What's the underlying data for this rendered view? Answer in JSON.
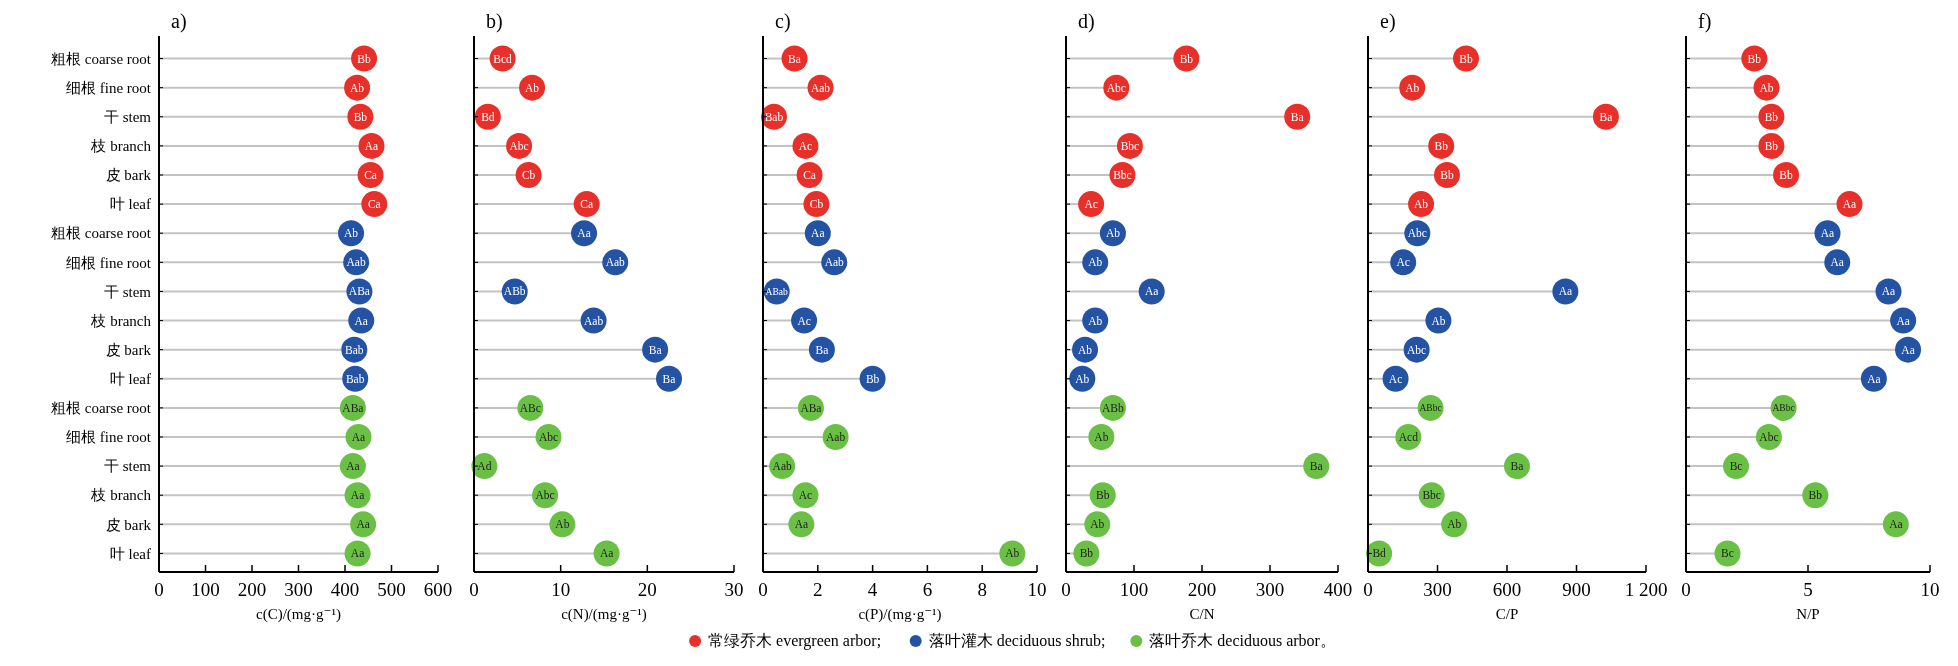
{
  "chart_data": [
    {
      "type": "lollipop",
      "orientation": "horizontal",
      "title": "a)",
      "xlabel": "c(C)/(mg·g⁻¹)",
      "categories": [
        "粗根 coarse root",
        "细根 fine root",
        "干 stem",
        "枝 branch",
        "皮 bark",
        "叶 leaf",
        "粗根 coarse root",
        "细根 fine root",
        "干 stem",
        "枝 branch",
        "皮 bark",
        "叶 leaf",
        "粗根 coarse root",
        "细根 fine root",
        "干 stem",
        "枝 branch",
        "皮 bark",
        "叶 leaf"
      ],
      "legend": "bottom",
      "xlim": [
        0,
        600
      ],
      "xticks": [
        0,
        100,
        200,
        300,
        400,
        500,
        600
      ],
      "series": [
        {
          "name": "常绿乔木 evergreen arbor;",
          "color": "#e8302a",
          "values": [
            441,
            426,
            433,
            457,
            455,
            463,
            null,
            null,
            null,
            null,
            null,
            null,
            null,
            null,
            null,
            null,
            null,
            null
          ],
          "value_labels": [
            "Bb",
            "Ab",
            "Bb",
            "Aa",
            "Ca",
            "Ca",
            null,
            null,
            null,
            null,
            null,
            null,
            null,
            null,
            null,
            null,
            null,
            null
          ]
        },
        {
          "name": "落叶灌木 deciduous shrub;",
          "color": "#2553a3",
          "values": [
            null,
            null,
            null,
            null,
            null,
            null,
            413,
            424,
            431,
            435,
            420,
            422,
            null,
            null,
            null,
            null,
            null,
            null
          ],
          "value_labels": [
            null,
            null,
            null,
            null,
            null,
            null,
            "Ab",
            "Aab",
            "ABa",
            "Aa",
            "Bab",
            "Bab",
            null,
            null,
            null,
            null,
            null,
            null
          ]
        },
        {
          "name": "落叶乔木 deciduous arbor。",
          "color": "#6abf45",
          "values": [
            null,
            null,
            null,
            null,
            null,
            null,
            null,
            null,
            null,
            null,
            null,
            null,
            417,
            429,
            417,
            427,
            439,
            427
          ],
          "value_labels": [
            null,
            null,
            null,
            null,
            null,
            null,
            null,
            null,
            null,
            null,
            null,
            null,
            "ABa",
            "Aa",
            "Aa",
            "Aa",
            "Aa",
            "Aa"
          ]
        }
      ]
    },
    {
      "type": "lollipop",
      "orientation": "horizontal",
      "title": "b)",
      "xlabel": "c(N)/(mg·g⁻¹)",
      "categories": [
        null,
        null,
        null,
        null,
        null,
        null,
        null,
        null,
        null,
        null,
        null,
        null,
        null,
        null,
        null,
        null,
        null,
        null
      ],
      "tick_labels": "x",
      "xlim": [
        0,
        30
      ],
      "xticks": [
        0,
        10,
        20,
        30
      ],
      "series": [
        {
          "color": "#e8302a",
          "values": [
            3.3,
            6.7,
            1.6,
            5.2,
            6.3,
            13.0,
            null,
            null,
            null,
            null,
            null,
            null,
            null,
            null,
            null,
            null,
            null,
            null
          ],
          "value_labels": [
            "Bcd",
            "Ab",
            "Bd",
            "Abc",
            "Cb",
            "Ca",
            null,
            null,
            null,
            null,
            null,
            null,
            null,
            null,
            null,
            null,
            null,
            null
          ]
        },
        {
          "color": "#2553a3",
          "values": [
            null,
            null,
            null,
            null,
            null,
            null,
            12.7,
            16.3,
            4.7,
            13.8,
            20.9,
            22.5,
            null,
            null,
            null,
            null,
            null,
            null
          ],
          "value_labels": [
            null,
            null,
            null,
            null,
            null,
            null,
            "Aa",
            "Aab",
            "ABb",
            "Aab",
            "Ba",
            "Ba",
            null,
            null,
            null,
            null,
            null,
            null
          ]
        },
        {
          "color": "#6abf45",
          "values": [
            null,
            null,
            null,
            null,
            null,
            null,
            null,
            null,
            null,
            null,
            null,
            null,
            6.5,
            8.6,
            1.2,
            8.2,
            10.2,
            15.3
          ],
          "value_labels": [
            null,
            null,
            null,
            null,
            null,
            null,
            null,
            null,
            null,
            null,
            null,
            null,
            "ABc",
            "Abc",
            "Ad",
            "Abc",
            "Ab",
            "Aa"
          ]
        }
      ]
    },
    {
      "type": "lollipop",
      "orientation": "horizontal",
      "title": "c)",
      "xlabel": "c(P)/(mg·g⁻¹)",
      "categories": [
        null,
        null,
        null,
        null,
        null,
        null,
        null,
        null,
        null,
        null,
        null,
        null,
        null,
        null,
        null,
        null,
        null,
        null
      ],
      "tick_labels": "x",
      "xlim": [
        0,
        10
      ],
      "xticks": [
        0,
        2,
        4,
        6,
        8,
        10
      ],
      "series": [
        {
          "color": "#e8302a",
          "values": [
            1.15,
            2.1,
            0.4,
            1.55,
            1.7,
            1.95,
            null,
            null,
            null,
            null,
            null,
            null,
            null,
            null,
            null,
            null,
            null,
            null
          ],
          "value_labels": [
            "Ba",
            "Aab",
            "Bab",
            "Ac",
            "Ca",
            "Cb",
            null,
            null,
            null,
            null,
            null,
            null,
            null,
            null,
            null,
            null,
            null,
            null
          ]
        },
        {
          "color": "#2553a3",
          "values": [
            null,
            null,
            null,
            null,
            null,
            null,
            2.0,
            2.6,
            0.5,
            1.5,
            2.15,
            4.0,
            null,
            null,
            null,
            null,
            null,
            null
          ],
          "value_labels": [
            null,
            null,
            null,
            null,
            null,
            null,
            "Aa",
            "Aab",
            "ABab",
            "Ac",
            "Ba",
            "Bb",
            null,
            null,
            null,
            null,
            null,
            null
          ]
        },
        {
          "color": "#6abf45",
          "values": [
            null,
            null,
            null,
            null,
            null,
            null,
            null,
            null,
            null,
            null,
            null,
            null,
            1.75,
            2.65,
            0.7,
            1.55,
            1.4,
            9.1
          ],
          "value_labels": [
            null,
            null,
            null,
            null,
            null,
            null,
            null,
            null,
            null,
            null,
            null,
            null,
            "ABa",
            "Aab",
            "Aab",
            "Ac",
            "Aa",
            "Ab"
          ]
        }
      ]
    },
    {
      "type": "lollipop",
      "orientation": "horizontal",
      "title": "d)",
      "xlabel": "C/N",
      "categories": [
        null,
        null,
        null,
        null,
        null,
        null,
        null,
        null,
        null,
        null,
        null,
        null,
        null,
        null,
        null,
        null,
        null,
        null
      ],
      "tick_labels": "x",
      "xlim": [
        0,
        400
      ],
      "xticks": [
        0,
        100,
        200,
        300,
        400
      ],
      "series": [
        {
          "color": "#e8302a",
          "values": [
            177,
            74,
            340,
            94,
            83,
            37,
            null,
            null,
            null,
            null,
            null,
            null,
            null,
            null,
            null,
            null,
            null,
            null
          ],
          "value_labels": [
            "Bb",
            "Abc",
            "Ba",
            "Bbc",
            "Bbc",
            "Ac",
            null,
            null,
            null,
            null,
            null,
            null,
            null,
            null,
            null,
            null,
            null,
            null
          ]
        },
        {
          "color": "#2553a3",
          "values": [
            null,
            null,
            null,
            null,
            null,
            null,
            69,
            43,
            126,
            43,
            28,
            24,
            null,
            null,
            null,
            null,
            null,
            null
          ],
          "value_labels": [
            null,
            null,
            null,
            null,
            null,
            null,
            "Ab",
            "Ab",
            "Aa",
            "Ab",
            "Ab",
            "Ab",
            null,
            null,
            null,
            null,
            null,
            null
          ]
        },
        {
          "color": "#6abf45",
          "values": [
            null,
            null,
            null,
            null,
            null,
            null,
            null,
            null,
            null,
            null,
            null,
            null,
            69,
            52,
            368,
            54,
            46,
            30
          ],
          "value_labels": [
            null,
            null,
            null,
            null,
            null,
            null,
            null,
            null,
            null,
            null,
            null,
            null,
            "ABb",
            "Ab",
            "Ba",
            "Bb",
            "Ab",
            "Bb"
          ]
        }
      ]
    },
    {
      "type": "lollipop",
      "orientation": "horizontal",
      "title": "e)",
      "xlabel": "C/P",
      "categories": [
        null,
        null,
        null,
        null,
        null,
        null,
        null,
        null,
        null,
        null,
        null,
        null,
        null,
        null,
        null,
        null,
        null,
        null
      ],
      "tick_labels": "x",
      "xlim": [
        0,
        1200
      ],
      "xticks": [
        0,
        300,
        600,
        900,
        {
          "value": 1200,
          "label": "1 200"
        }
      ],
      "series": [
        {
          "color": "#e8302a",
          "values": [
            423,
            191,
            1027,
            316,
            341,
            229,
            null,
            null,
            null,
            null,
            null,
            null,
            null,
            null,
            null,
            null,
            null,
            null
          ],
          "value_labels": [
            "Bb",
            "Ab",
            "Ba",
            "Bb",
            "Bb",
            "Ab",
            null,
            null,
            null,
            null,
            null,
            null,
            null,
            null,
            null,
            null,
            null,
            null
          ]
        },
        {
          "color": "#2553a3",
          "values": [
            null,
            null,
            null,
            null,
            null,
            null,
            213,
            152,
            852,
            304,
            210,
            119,
            null,
            null,
            null,
            null,
            null,
            null
          ],
          "value_labels": [
            null,
            null,
            null,
            null,
            null,
            null,
            "Abc",
            "Ac",
            "Aa",
            "Ab",
            "Abc",
            "Ac",
            null,
            null,
            null,
            null,
            null,
            null
          ]
        },
        {
          "color": "#6abf45",
          "values": [
            null,
            null,
            null,
            null,
            null,
            null,
            null,
            null,
            null,
            null,
            null,
            null,
            270,
            174,
            643,
            275,
            372,
            48
          ],
          "value_labels": [
            null,
            null,
            null,
            null,
            null,
            null,
            null,
            null,
            null,
            null,
            null,
            null,
            "ABbc",
            "Acd",
            "Ba",
            "Bbc",
            "Ab",
            "Bd"
          ]
        }
      ]
    },
    {
      "type": "lollipop",
      "orientation": "horizontal",
      "title": "f)",
      "xlabel": "N/P",
      "categories": [
        null,
        null,
        null,
        null,
        null,
        null,
        null,
        null,
        null,
        null,
        null,
        null,
        null,
        null,
        null,
        null,
        null,
        null
      ],
      "tick_labels": "x",
      "xlim": [
        0,
        10
      ],
      "xticks": [
        0,
        5,
        10
      ],
      "series": [
        {
          "color": "#e8302a",
          "values": [
            2.8,
            3.3,
            3.5,
            3.5,
            4.1,
            6.7,
            null,
            null,
            null,
            null,
            null,
            null,
            null,
            null,
            null,
            null,
            null,
            null
          ],
          "value_labels": [
            "Bb",
            "Ab",
            "Bb",
            "Bb",
            "Bb",
            "Aa",
            null,
            null,
            null,
            null,
            null,
            null,
            null,
            null,
            null,
            null,
            null,
            null
          ]
        },
        {
          "color": "#2553a3",
          "values": [
            null,
            null,
            null,
            null,
            null,
            null,
            5.8,
            6.2,
            8.3,
            8.9,
            9.1,
            7.7,
            null,
            null,
            null,
            null,
            null,
            null
          ],
          "value_labels": [
            null,
            null,
            null,
            null,
            null,
            null,
            "Aa",
            "Aa",
            "Aa",
            "Aa",
            "Aa",
            "Aa",
            null,
            null,
            null,
            null,
            null,
            null
          ]
        },
        {
          "color": "#6abf45",
          "values": [
            null,
            null,
            null,
            null,
            null,
            null,
            null,
            null,
            null,
            null,
            null,
            null,
            4.0,
            3.4,
            2.05,
            5.3,
            8.6,
            1.7
          ],
          "value_labels": [
            null,
            null,
            null,
            null,
            null,
            null,
            null,
            null,
            null,
            null,
            null,
            null,
            "ABbc",
            "Abc",
            "Bc",
            "Bb",
            "Aa",
            "Bc"
          ]
        }
      ]
    }
  ]
}
